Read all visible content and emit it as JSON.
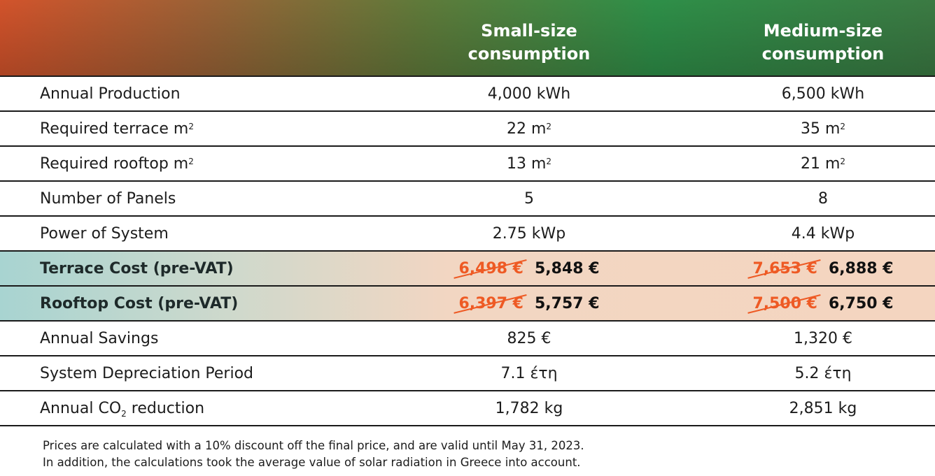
{
  "header": {
    "columns": [
      {
        "line1": "Small-size",
        "line2": "consumption"
      },
      {
        "line1": "Medium-size",
        "line2": "consumption"
      }
    ]
  },
  "rows": [
    {
      "label": "Annual Production",
      "small": "4,000 kWh",
      "medium": "6,500 kWh"
    },
    {
      "label": "Required terrace m",
      "label_sup": "2",
      "small": "22 m",
      "small_sup": "2",
      "medium": "35 m",
      "medium_sup": "2"
    },
    {
      "label": "Required rooftop m",
      "label_sup": "2",
      "small": "13 m",
      "small_sup": "2",
      "medium": "21 m",
      "medium_sup": "2"
    },
    {
      "label": "Number of Panels",
      "small": "5",
      "medium": "8"
    },
    {
      "label": "Power of System",
      "small": "2.75 kWp",
      "medium": "4.4 kWp"
    },
    {
      "label": "Terrace Cost (pre-VAT)",
      "small_old": "6,498 €",
      "small": "5,848 €",
      "medium_old": "7,653 €",
      "medium": "6,888 €",
      "highlight": true
    },
    {
      "label": "Rooftop Cost (pre-VAT)",
      "small_old": "6,397 €",
      "small": "5,757 €",
      "medium_old": "7,500 €",
      "medium": "6,750 €",
      "highlight": true
    },
    {
      "label": "Annual Savings",
      "small": "825 €",
      "medium": "1,320 €"
    },
    {
      "label": "System Depreciation Period",
      "small": "7.1 έτη",
      "medium": "5.2 έτη"
    },
    {
      "label_pre": "Annual CO",
      "label_sub": "2",
      "label_post": " reduction",
      "small": "1,782 kg",
      "medium": "2,851 kg"
    }
  ],
  "notes": [
    "Prices are calculated with a 10% discount off the final price, and are valid until May 31, 2023.",
    "In addition, the calculations took the average value of solar radiation in Greece into account."
  ],
  "colors": {
    "strike": "#ee5a24",
    "header_start": "#d2532b",
    "header_end": "#2e8f48",
    "highlight_left": "#a8d4d1",
    "highlight_right": "#f4d5c0"
  }
}
